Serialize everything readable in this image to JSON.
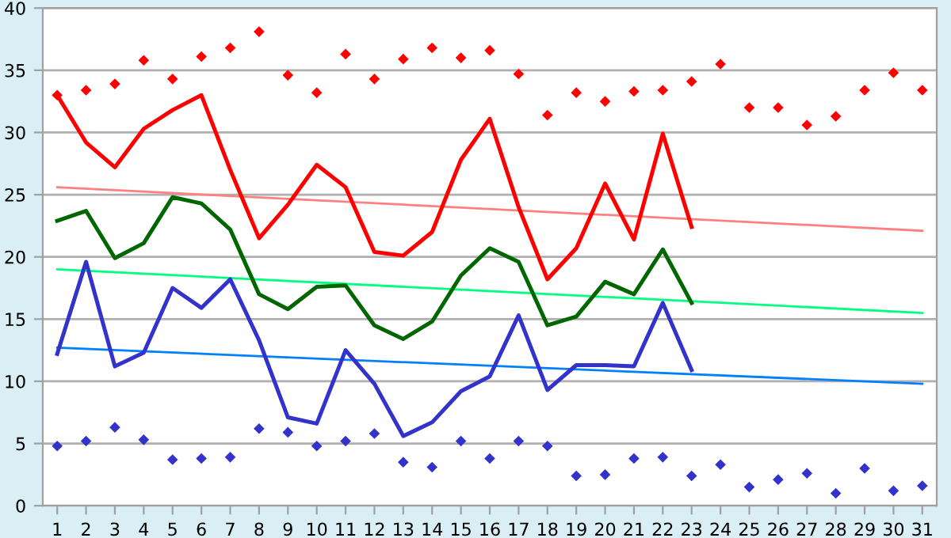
{
  "chart_data": {
    "type": "line",
    "x": [
      1,
      2,
      3,
      4,
      5,
      6,
      7,
      8,
      9,
      10,
      11,
      12,
      13,
      14,
      15,
      16,
      17,
      18,
      19,
      20,
      21,
      22,
      23,
      24,
      25,
      26,
      27,
      28,
      29,
      30,
      31
    ],
    "xlim": [
      0.5,
      31.5
    ],
    "xticks": [
      1,
      2,
      3,
      4,
      5,
      6,
      7,
      8,
      9,
      10,
      11,
      12,
      13,
      14,
      15,
      16,
      17,
      18,
      19,
      20,
      21,
      22,
      23,
      24,
      25,
      26,
      27,
      28,
      29,
      30,
      31
    ],
    "ylim": [
      0,
      40
    ],
    "yticks": [
      0,
      5,
      10,
      15,
      20,
      25,
      30,
      35,
      40
    ],
    "grid": "y",
    "legend": false,
    "series": [
      {
        "type": "scatter",
        "marker": "diamond",
        "color": "#ff0000",
        "values": [
          33.0,
          33.4,
          33.9,
          35.8,
          34.3,
          36.1,
          36.8,
          38.1,
          34.6,
          33.2,
          36.3,
          34.3,
          35.9,
          36.8,
          36.0,
          36.6,
          34.7,
          31.4,
          33.2,
          32.5,
          33.3,
          33.4,
          34.1,
          35.5,
          32.0,
          32.0,
          30.6,
          31.3,
          33.4,
          34.8,
          33.4
        ]
      },
      {
        "type": "scatter",
        "marker": "diamond",
        "color": "#3333cc",
        "values": [
          4.8,
          5.2,
          6.3,
          5.3,
          3.7,
          3.8,
          3.9,
          6.2,
          5.9,
          4.8,
          5.2,
          5.8,
          3.5,
          3.1,
          5.2,
          3.8,
          5.2,
          4.8,
          2.4,
          2.5,
          3.8,
          3.9,
          2.4,
          3.3,
          1.5,
          2.1,
          2.6,
          1.0,
          3.0,
          1.2,
          1.6
        ]
      },
      {
        "color": "#ff0000",
        "x": [
          1,
          2,
          3,
          4,
          5,
          6,
          7,
          8,
          9,
          10,
          11,
          12,
          13,
          14,
          15,
          16,
          17,
          18,
          19,
          20,
          21,
          22,
          23
        ],
        "values": [
          33.0,
          29.2,
          27.2,
          30.3,
          31.8,
          33.0,
          27.0,
          21.5,
          24.2,
          27.4,
          25.6,
          20.4,
          20.1,
          22.0,
          27.8,
          31.1,
          24.0,
          18.2,
          20.7,
          25.9,
          21.4,
          29.9,
          22.4
        ]
      },
      {
        "color": "#006600",
        "x": [
          1,
          2,
          3,
          4,
          5,
          6,
          7,
          8,
          9,
          10,
          11,
          12,
          13,
          14,
          15,
          16,
          17,
          18,
          19,
          20,
          21,
          22,
          23
        ],
        "values": [
          22.9,
          23.7,
          19.9,
          21.1,
          24.8,
          24.3,
          22.2,
          17.0,
          15.8,
          17.6,
          17.7,
          14.5,
          13.4,
          14.8,
          18.5,
          20.7,
          19.6,
          14.5,
          15.2,
          18.0,
          17.0,
          20.6,
          16.3
        ]
      },
      {
        "color": "#3333cc",
        "x": [
          1,
          2,
          3,
          4,
          5,
          6,
          7,
          8,
          9,
          10,
          11,
          12,
          13,
          14,
          15,
          16,
          17,
          18,
          19,
          20,
          21,
          22,
          23
        ],
        "values": [
          12.2,
          19.6,
          11.2,
          12.3,
          17.5,
          15.9,
          18.2,
          13.3,
          7.1,
          6.6,
          12.5,
          9.8,
          5.6,
          6.7,
          9.2,
          10.4,
          15.3,
          9.3,
          11.3,
          11.3,
          11.2,
          16.3,
          10.9
        ]
      },
      {
        "color": "#ff8080",
        "x": [
          1,
          31
        ],
        "values": [
          25.6,
          22.1
        ]
      },
      {
        "color": "#00ff80",
        "x": [
          1,
          31
        ],
        "values": [
          19.0,
          15.5
        ]
      },
      {
        "color": "#0080ff",
        "x": [
          1,
          31
        ],
        "values": [
          12.7,
          9.8
        ]
      }
    ]
  }
}
